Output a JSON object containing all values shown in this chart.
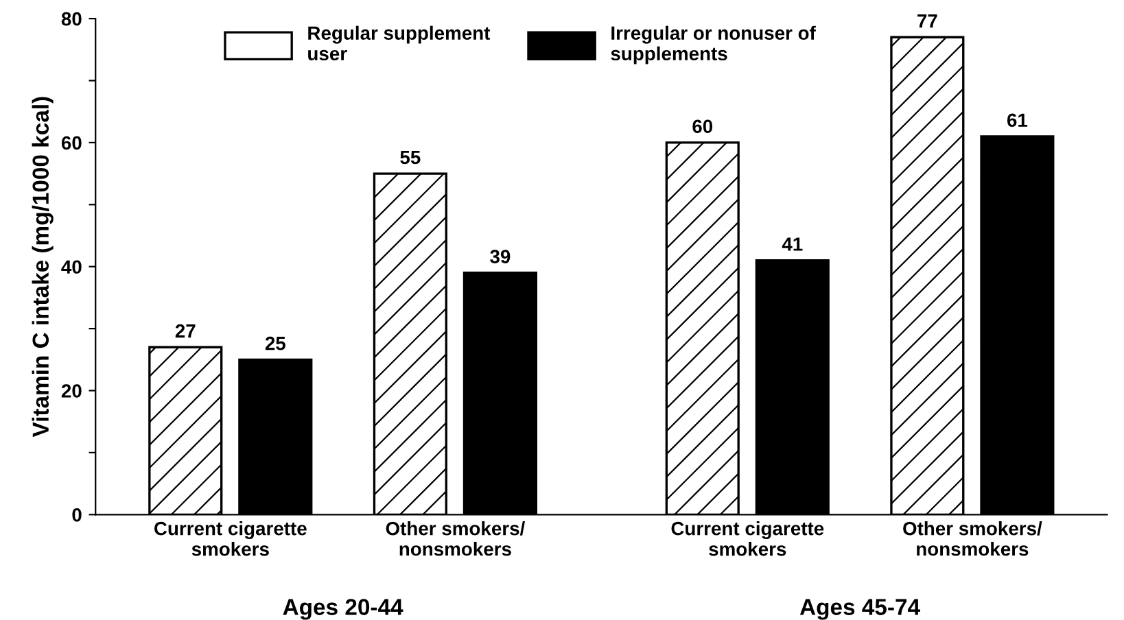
{
  "chart_data": {
    "type": "bar",
    "ylabel": "Vitamin C intake (mg/1000 kcal)",
    "categories": [
      "Current cigarette\nsmokers",
      "Other smokers/\nnonsmokers",
      "Current cigarette\nsmokers",
      "Other smokers/\nnonsmokers"
    ],
    "series": [
      {
        "name": "Regular supplement\nuser",
        "color": "#ffffff",
        "values": [
          27,
          55,
          60,
          77
        ]
      },
      {
        "name": "Irregular or nonuser of\nsupplements",
        "color": "#000000",
        "values": [
          25,
          39,
          41,
          61
        ]
      }
    ],
    "ylim": [
      0,
      80
    ],
    "yticks": [
      0,
      {
        "value": 10,
        "label": null
      },
      20,
      {
        "value": 30,
        "label": null
      },
      40,
      {
        "value": 50,
        "label": null
      },
      60,
      {
        "value": 70,
        "label": null
      },
      80
    ],
    "data_labels": true,
    "legend": "top",
    "grid": false,
    "annotations": [
      "Ages 20-44",
      "Ages 45-74"
    ]
  }
}
